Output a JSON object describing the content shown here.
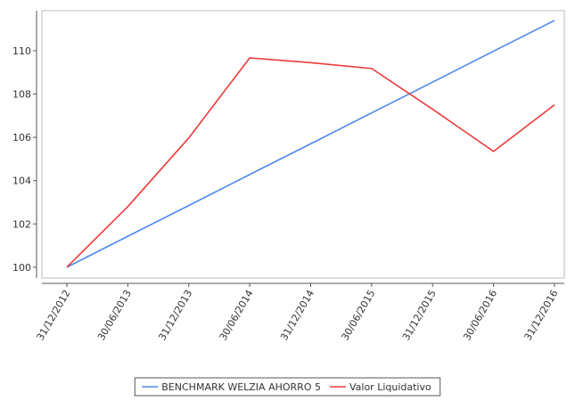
{
  "chart_data": {
    "type": "line",
    "categories": [
      "31/12/2012",
      "30/06/2013",
      "31/12/2013",
      "30/06/2014",
      "31/12/2014",
      "30/06/2015",
      "31/12/2015",
      "30/06/2016",
      "31/12/2016"
    ],
    "series": [
      {
        "name": "BENCHMARK WELZIA AHORRO 5",
        "color": "#4d88ee",
        "values": [
          100,
          101.43,
          102.85,
          104.28,
          105.7,
          107.13,
          108.55,
          109.98,
          111.4
        ]
      },
      {
        "name": "Valor Liquidativo",
        "color": "#ee3a3a",
        "values": [
          100,
          102.8,
          105.97,
          109.67,
          109.45,
          109.18,
          107.3,
          105.35,
          107.5
        ]
      }
    ],
    "ylim": [
      99.5,
      111.85
    ],
    "yticks": [
      100,
      102,
      104,
      106,
      108,
      110
    ],
    "legend": "bottom"
  }
}
